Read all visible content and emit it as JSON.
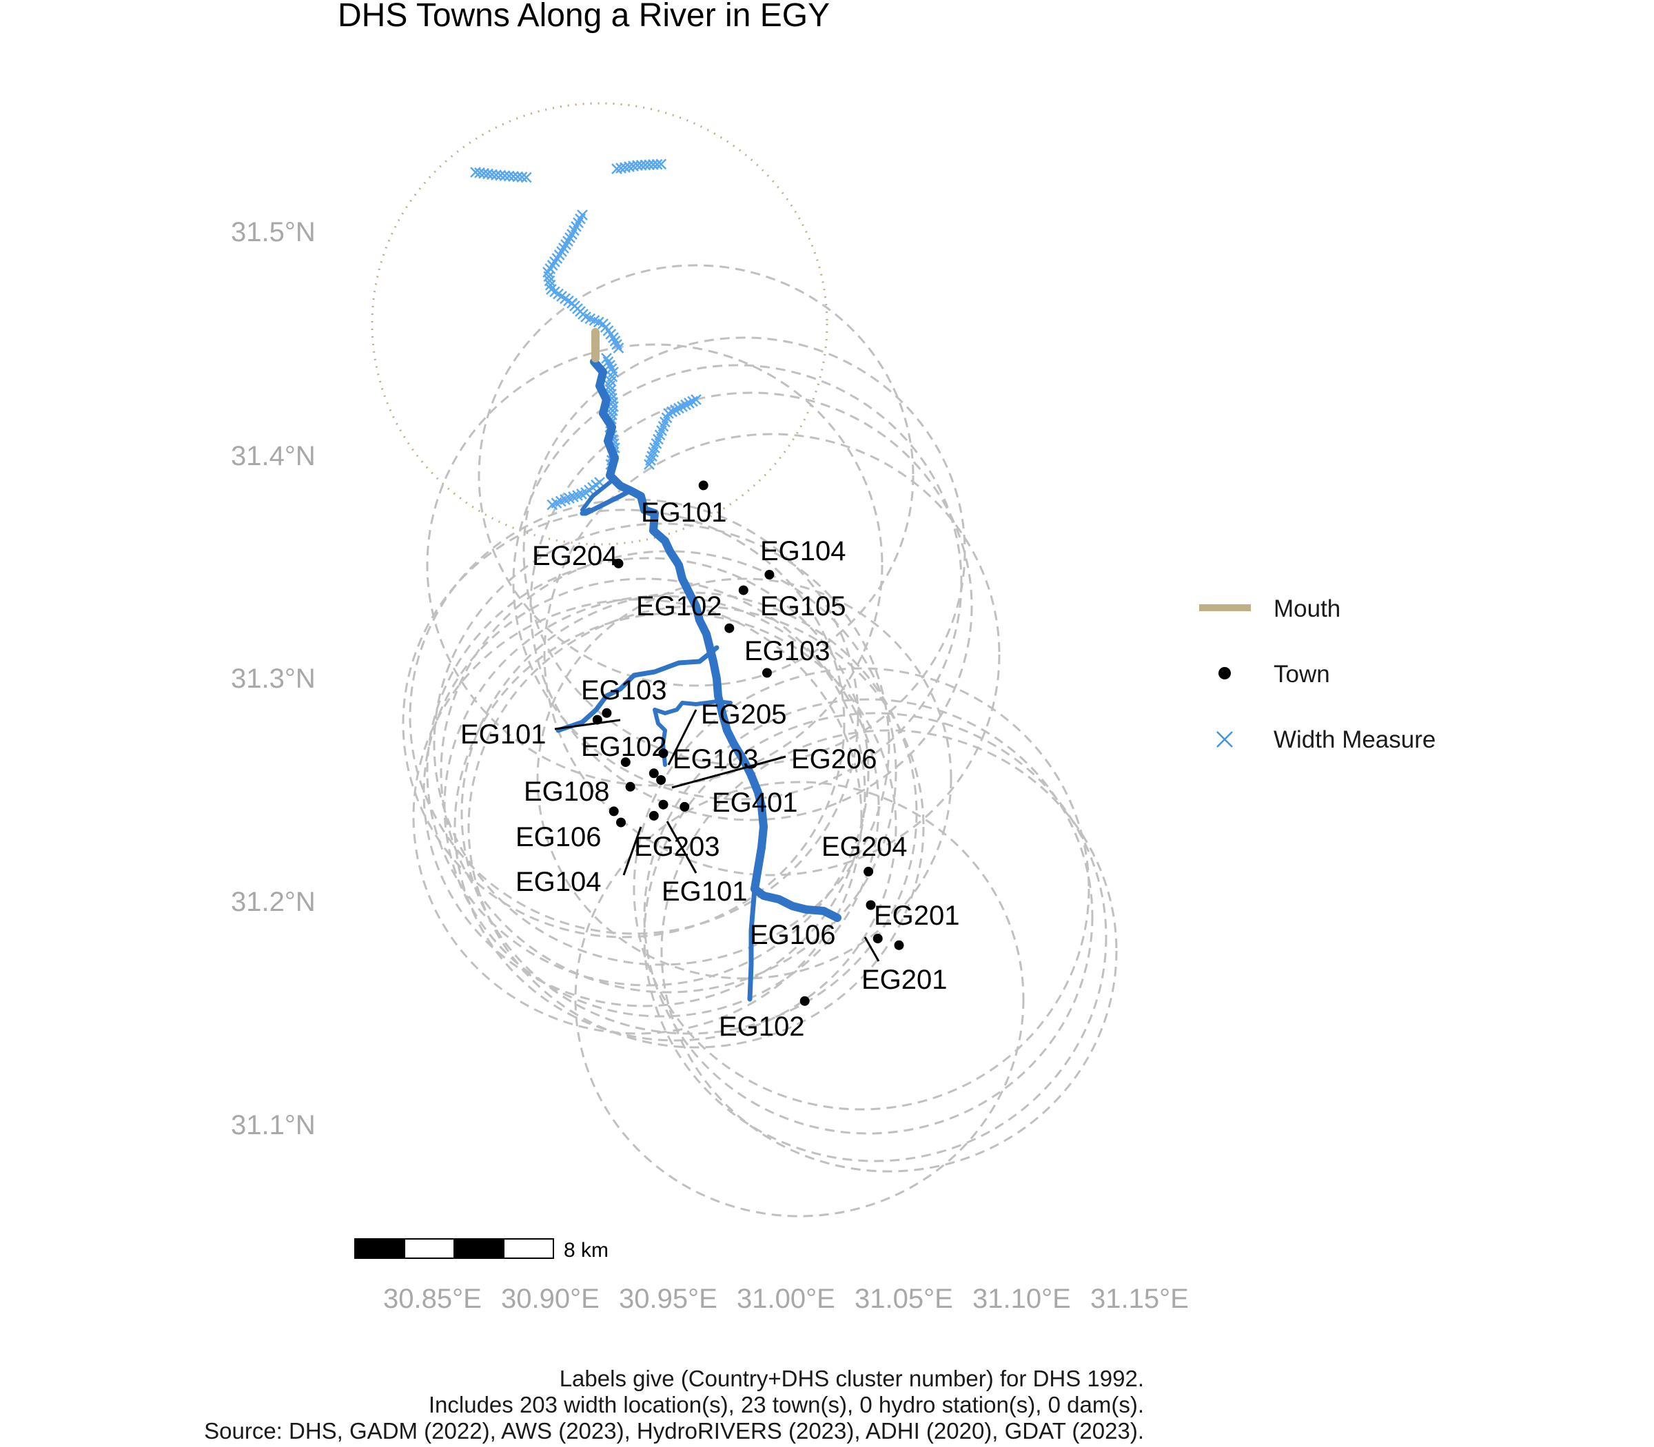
{
  "title": "DHS Towns Along a River in EGY",
  "axes": {
    "y_ticks": [
      "31.5°N",
      "31.4°N",
      "31.3°N",
      "31.2°N",
      "31.1°N"
    ],
    "x_ticks": [
      "30.85°E",
      "30.90°E",
      "30.95°E",
      "31.00°E",
      "31.05°E",
      "31.10°E",
      "31.15°E"
    ]
  },
  "legend": {
    "position": "right",
    "items": [
      {
        "label": "Mouth",
        "symbol": "line",
        "color": "#bfae86"
      },
      {
        "label": "Town",
        "symbol": "dot",
        "color": "#000000"
      },
      {
        "label": "Width Measure",
        "symbol": "x",
        "color": "#3f93e8"
      }
    ]
  },
  "scale_bar": {
    "label": "8 km"
  },
  "towns": [
    {
      "label": "EG101",
      "lon": 30.973,
      "lat": 31.386
    },
    {
      "label": "EG204",
      "lon": 30.937,
      "lat": 31.351
    },
    {
      "label": "EG104",
      "lon": 31.001,
      "lat": 31.346
    },
    {
      "label": "EG105",
      "lon": 30.99,
      "lat": 31.339
    },
    {
      "label": "EG102",
      "lon": 30.984,
      "lat": 31.322
    },
    {
      "label": "EG103",
      "lon": 31.0,
      "lat": 31.302
    },
    {
      "label": "EG103",
      "lon": 30.932,
      "lat": 31.284
    },
    {
      "label": "EG101",
      "lon": 30.928,
      "lat": 31.281
    },
    {
      "label": "EG205",
      "lon": 30.956,
      "lat": 31.266
    },
    {
      "label": "EG102",
      "lon": 30.94,
      "lat": 31.262
    },
    {
      "label": "EG103",
      "lon": 30.952,
      "lat": 31.257
    },
    {
      "label": "EG206",
      "lon": 30.955,
      "lat": 31.254
    },
    {
      "label": "EG108",
      "lon": 30.942,
      "lat": 31.251
    },
    {
      "label": "EG401",
      "lon": 30.965,
      "lat": 31.242
    },
    {
      "label": "EG106",
      "lon": 30.935,
      "lat": 31.24
    },
    {
      "label": "EG203",
      "lon": 30.956,
      "lat": 31.243
    },
    {
      "label": "EG104",
      "lon": 30.938,
      "lat": 31.235
    },
    {
      "label": "EG101",
      "lon": 30.952,
      "lat": 31.238
    },
    {
      "label": "EG204",
      "lon": 31.043,
      "lat": 31.213
    },
    {
      "label": "EG201",
      "lon": 31.044,
      "lat": 31.198
    },
    {
      "label": "EG106",
      "lon": 31.047,
      "lat": 31.183
    },
    {
      "label": "EG201",
      "lon": 31.056,
      "lat": 31.18
    },
    {
      "label": "EG102",
      "lon": 31.016,
      "lat": 31.155
    }
  ],
  "caption": [
    "Labels give (Country+DHS cluster number) for DHS 1992.",
    "Includes 203 width location(s), 23 town(s), 0 hydro station(s), 0 dam(s).",
    "Source: DHS, GADM (2022), AWS (2023), HydroRIVERS (2023), ADHI (2020), GDAT (2023)."
  ],
  "colors": {
    "river": "#2f74c6",
    "width_measure": "#58a6ee",
    "mouth": "#bfae86",
    "buffer": "#c0c0c0",
    "axis_text": "#a8a8a8"
  }
}
